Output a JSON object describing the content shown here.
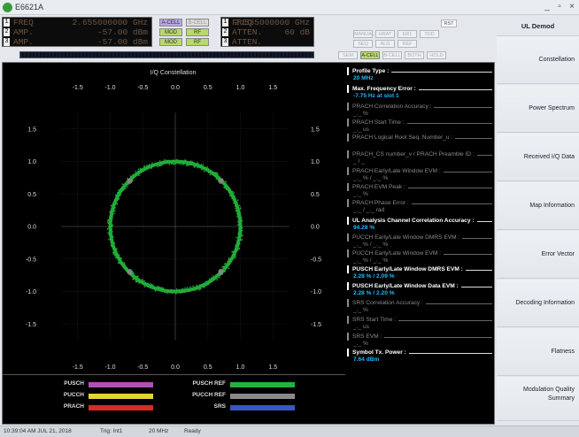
{
  "window": {
    "title": "E6621A",
    "minimize": "_",
    "maximize": "▫",
    "close": "×"
  },
  "header": {
    "lcd_left": {
      "rows": [
        {
          "index": "1",
          "label": "FREQ",
          "value": "2.655000000 GHz"
        },
        {
          "index": "2",
          "label": "AMP.",
          "value": "-57.00 dBm"
        },
        {
          "index": "3",
          "label": "AMP.",
          "value": "-57.00 dBm"
        }
      ]
    },
    "lcd_right": {
      "rows": [
        {
          "index": "1",
          "label": "FREQ",
          "value": "2.535000000 GHz"
        },
        {
          "index": "2",
          "label": "ATTEN.",
          "value": "60 dB"
        },
        {
          "index": "3",
          "label": "ATTEN.",
          "value": ""
        }
      ]
    },
    "chips_left": [
      {
        "text": "A-CELL",
        "state": "purple"
      },
      {
        "text": "B-CELL",
        "state": "off"
      },
      {
        "text": "MOD",
        "state": "on"
      },
      {
        "text": "RF",
        "state": "on"
      },
      {
        "text": "MOD",
        "state": "on"
      },
      {
        "text": "RF",
        "state": "on"
      }
    ],
    "rst": "RST",
    "buttons_row1": [
      "MANUAL",
      "HRAT",
      "ER1",
      "TDD"
    ],
    "buttons_row2": [
      "SEQ",
      "ALG",
      "REF"
    ],
    "buttons_row3": [
      "SEM",
      "A-CELL",
      "B-CELL",
      "BOTH",
      "HOLD"
    ],
    "active_button": "A-CELL"
  },
  "plot": {
    "title": "I/Q Constellation",
    "x_ticks": [
      "-1.5",
      "-1.0",
      "-0.5",
      "0.0",
      "0.5",
      "1.0",
      "1.5"
    ],
    "y_ticks": [
      "1.5",
      "1.0",
      "0.5",
      "0.0",
      "-0.5",
      "-1.0",
      "-1.5"
    ]
  },
  "chart_data": {
    "type": "scatter",
    "title": "I/Q Constellation",
    "xlim": [
      -1.75,
      1.75
    ],
    "ylim": [
      -1.75,
      1.75
    ],
    "grid": true,
    "series": [
      {
        "name": "PUSCH REF",
        "shape": "circle",
        "center": [
          0,
          0
        ],
        "radius": 1.0,
        "color": "#22b33c"
      },
      {
        "name": "PUSCH",
        "points": [
          [
            0.7,
            0.7
          ],
          [
            -0.7,
            0.7
          ],
          [
            -0.7,
            -0.7
          ],
          [
            0.7,
            -0.7
          ]
        ],
        "color": "#8a8a8a"
      }
    ]
  },
  "measurements": [
    {
      "label": "Profile Type :",
      "value": "20 MHz",
      "active": true
    },
    {
      "label": "Max. Frequency Error :",
      "value": "-7.75 Hz at slot 1",
      "active": true
    },
    {
      "label": "PRACH Correlation Accuracy :",
      "value": "_._ %",
      "active": false
    },
    {
      "label": "PRACH Start Time :",
      "value": "_._ us",
      "active": false
    },
    {
      "label": "PRACH Logical Root Seq. Number_u :",
      "value": "",
      "active": false
    },
    {
      "label": "PRACH_CS number_v / PRACH Preamble ID :",
      "value": "_ / _",
      "active": false
    },
    {
      "label": "PRACH Early/Late Window EVM :",
      "value": "_._ % / _._ %",
      "active": false
    },
    {
      "label": "PRACH EVM Peak :",
      "value": "_._ %",
      "active": false
    },
    {
      "label": "PRACH Phase Error :",
      "value": "_._ / _._ rad",
      "active": false
    },
    {
      "label": "UL Analysis Channel Correlation Accuracy :",
      "value": "94.28 %",
      "active": true
    },
    {
      "label": "PUCCH Early/Late Window DMRS EVM :",
      "value": "_._ % / _._ %",
      "active": false
    },
    {
      "label": "PUCCH Early/Late Window EVM :",
      "value": "_._ % / _._ %",
      "active": false
    },
    {
      "label": "PUSCH Early/Late Window DMRS EVM :",
      "value": "2.28 % / 2.09 %",
      "active": true
    },
    {
      "label": "PUSCH Early/Late Window Data EVM :",
      "value": "2.28 % / 2.20 %",
      "active": true
    },
    {
      "label": "SRS Correlation Accuracy :",
      "value": "_._ %",
      "active": false
    },
    {
      "label": "SRS Start Time :",
      "value": "_._ us",
      "active": false
    },
    {
      "label": "SRS EVM :",
      "value": "_._ %",
      "active": false
    },
    {
      "label": "Symbol Tx. Power :",
      "value": "7.64 dBm",
      "active": true
    }
  ],
  "legend": [
    {
      "label": "PUSCH",
      "color": "#b24fb8"
    },
    {
      "label": "PUCCH",
      "color": "#e3d431"
    },
    {
      "label": "PRACH",
      "color": "#d92a26"
    },
    {
      "label": "PUSCH REF",
      "color": "#22b33c"
    },
    {
      "label": "PUCCH REF",
      "color": "#8a8a8a"
    },
    {
      "label": "SRS",
      "color": "#3a55c8"
    }
  ],
  "menu": {
    "title": "UL Demod",
    "items": [
      "Constellation",
      "Power Spectrum",
      "Received I/Q Data",
      "Map Information",
      "Error Vector",
      "Decoding Information",
      "Flatness",
      "Modulation Quality Summary"
    ]
  },
  "status": {
    "time": "10:39:04 AM JUL 21, 2018",
    "trig": "Trig: Int1",
    "bw": "20 MHz",
    "state": "Ready"
  }
}
